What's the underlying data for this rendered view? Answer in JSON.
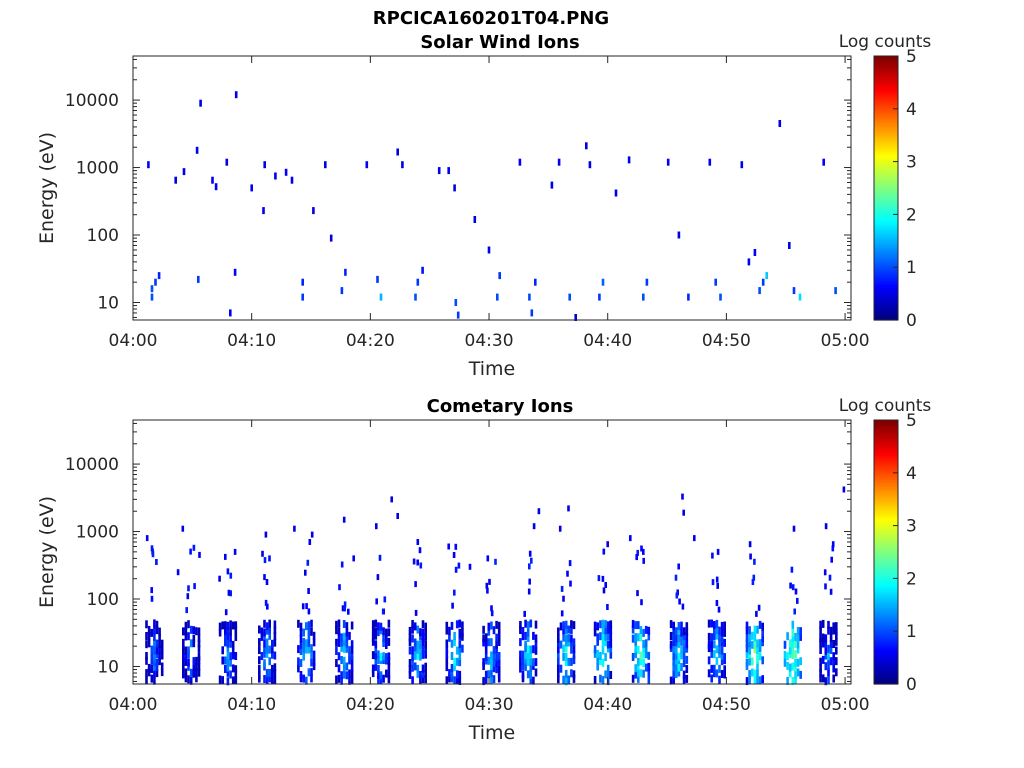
{
  "figure": {
    "title": "RPCICA160201T04.PNG"
  },
  "chart_data": [
    {
      "type": "heatmap",
      "title": "Solar Wind Ions",
      "xlabel": "Time",
      "ylabel": "Energy (eV)",
      "x_ticks": [
        "04:00",
        "04:10",
        "04:20",
        "04:30",
        "04:40",
        "04:50",
        "05:00"
      ],
      "x_range_minutes": [
        0,
        60.5
      ],
      "y_ticks": [
        "10",
        "100",
        "1000",
        "10000"
      ],
      "y_tick_values": [
        10,
        100,
        1000,
        10000
      ],
      "y_scale": "log",
      "y_range": [
        5.5,
        45000
      ],
      "colorbar": {
        "label": "Log counts",
        "ticks": [
          "0",
          "1",
          "2",
          "3",
          "4",
          "5"
        ],
        "range": [
          0,
          5
        ],
        "colormap": "jet"
      },
      "cells": [
        [
          1.6,
          12,
          1.0
        ],
        [
          1.6,
          16,
          1.0
        ],
        [
          1.9,
          20,
          0.9
        ],
        [
          2.2,
          25,
          0.8
        ],
        [
          1.3,
          1100,
          0.6
        ],
        [
          3.6,
          650,
          0.5
        ],
        [
          4.3,
          870,
          0.5
        ],
        [
          5.5,
          22,
          0.9
        ],
        [
          5.4,
          1800.0,
          0.6
        ],
        [
          5.7,
          9000,
          0.5
        ],
        [
          6.7,
          650,
          0.6
        ],
        [
          7.0,
          520,
          0.6
        ],
        [
          7.9,
          1200.0,
          0.5
        ],
        [
          8.2,
          7,
          0.6
        ],
        [
          8.6,
          28,
          0.6
        ],
        [
          8.7,
          12000,
          0.5
        ],
        [
          10.0,
          500,
          0.6
        ],
        [
          11.0,
          230,
          0.5
        ],
        [
          11.1,
          1100.0,
          0.5
        ],
        [
          12.0,
          750,
          0.5
        ],
        [
          12.9,
          850,
          0.6
        ],
        [
          13.4,
          650,
          0.5
        ],
        [
          14.3,
          12,
          0.9
        ],
        [
          14.3,
          20,
          0.8
        ],
        [
          15.2,
          230,
          0.5
        ],
        [
          16.2,
          1100.0,
          0.5
        ],
        [
          16.7,
          90,
          0.5
        ],
        [
          17.6,
          15,
          0.9
        ],
        [
          17.9,
          28,
          0.8
        ],
        [
          19.7,
          1100.0,
          0.6
        ],
        [
          20.6,
          22,
          0.9
        ],
        [
          20.9,
          12,
          1.5
        ],
        [
          22.3,
          1700.0,
          0.5
        ],
        [
          22.7,
          1100.0,
          0.5
        ],
        [
          23.8,
          12,
          1.0
        ],
        [
          24.0,
          20,
          0.9
        ],
        [
          24.4,
          30,
          0.7
        ],
        [
          25.8,
          900,
          0.6
        ],
        [
          26.6,
          900,
          0.6
        ],
        [
          27.1,
          500,
          0.5
        ],
        [
          27.2,
          10,
          1.0
        ],
        [
          27.4,
          6.5,
          0.9
        ],
        [
          28.8,
          170,
          0.5
        ],
        [
          30.0,
          60,
          0.5
        ],
        [
          30.7,
          12,
          1.0
        ],
        [
          30.9,
          25,
          0.9
        ],
        [
          32.6,
          1200.0,
          0.6
        ],
        [
          33.4,
          12,
          1.0
        ],
        [
          33.6,
          7,
          0.9
        ],
        [
          33.9,
          20,
          0.8
        ],
        [
          35.3,
          550,
          0.5
        ],
        [
          35.9,
          1200.0,
          0.6
        ],
        [
          36.8,
          12,
          1.0
        ],
        [
          37.3,
          6,
          0.5
        ],
        [
          38.2,
          2100.0,
          0.5
        ],
        [
          38.5,
          1100.0,
          0.5
        ],
        [
          39.3,
          12,
          0.9
        ],
        [
          39.6,
          20,
          1.1
        ],
        [
          40.7,
          420,
          0.5
        ],
        [
          41.8,
          1300.0,
          0.6
        ],
        [
          43.0,
          12,
          1.0
        ],
        [
          43.3,
          20,
          0.9
        ],
        [
          45.1,
          1200.0,
          0.6
        ],
        [
          46.0,
          100,
          0.5
        ],
        [
          46.8,
          12,
          0.8
        ],
        [
          48.6,
          1200.0,
          0.6
        ],
        [
          49.1,
          20,
          0.9
        ],
        [
          49.5,
          12,
          1.0
        ],
        [
          51.3,
          1100.0,
          0.5
        ],
        [
          51.9,
          40,
          0.6
        ],
        [
          52.4,
          55,
          0.6
        ],
        [
          52.8,
          15,
          1.0
        ],
        [
          53.1,
          20,
          0.9
        ],
        [
          53.4,
          25,
          1.6
        ],
        [
          54.5,
          4500,
          0.5
        ],
        [
          55.3,
          70,
          0.6
        ],
        [
          55.7,
          15,
          0.9
        ],
        [
          56.2,
          12,
          1.7
        ],
        [
          58.2,
          1200.0,
          0.6
        ],
        [
          59.2,
          15,
          1.0
        ]
      ]
    },
    {
      "type": "heatmap",
      "title": "Cometary Ions",
      "xlabel": "Time",
      "ylabel": "Energy (eV)",
      "x_ticks": [
        "04:00",
        "04:10",
        "04:20",
        "04:30",
        "04:40",
        "04:50",
        "05:00"
      ],
      "x_range_minutes": [
        0,
        60.5
      ],
      "y_ticks": [
        "10",
        "100",
        "1000",
        "10000"
      ],
      "y_tick_values": [
        10,
        100,
        1000,
        10000
      ],
      "y_scale": "log",
      "y_range": [
        5.5,
        45000
      ],
      "colorbar": {
        "label": "Log counts",
        "ticks": [
          "0",
          "1",
          "2",
          "3",
          "4",
          "5"
        ],
        "range": [
          0,
          5
        ],
        "colormap": "jet"
      },
      "bursts_minutes": [
        1.8,
        4.9,
        8.0,
        11.3,
        14.6,
        17.8,
        20.9,
        24.0,
        27.1,
        30.2,
        33.3,
        36.5,
        39.6,
        42.8,
        46.0,
        49.2,
        52.4,
        55.6,
        58.6
      ],
      "burst_peak_log_counts": [
        1.5,
        1.6,
        1.7,
        1.9,
        2.1,
        2.0,
        1.9,
        2.0,
        2.1,
        2.0,
        2.1,
        2.2,
        2.4,
        2.6,
        2.2,
        2.1,
        2.7,
        2.8,
        1.6
      ],
      "scattered_cells": [
        [
          1.2,
          800,
          0.6
        ],
        [
          3.8,
          250,
          0.6
        ],
        [
          4.2,
          1100.0,
          0.5
        ],
        [
          5.6,
          450,
          0.6
        ],
        [
          7.3,
          200,
          0.5
        ],
        [
          8.6,
          500,
          0.6
        ],
        [
          11.2,
          900,
          0.5
        ],
        [
          11.5,
          400,
          0.7
        ],
        [
          13.6,
          1100.0,
          0.5
        ],
        [
          14.9,
          700,
          0.6
        ],
        [
          15.1,
          900,
          0.5
        ],
        [
          17.8,
          1500.0,
          0.5
        ],
        [
          18.6,
          400,
          0.6
        ],
        [
          20.5,
          1200.0,
          0.5
        ],
        [
          21.8,
          3000,
          0.5
        ],
        [
          22.3,
          1700.0,
          0.5
        ],
        [
          24.0,
          700,
          0.6
        ],
        [
          26.6,
          600,
          0.6
        ],
        [
          28.4,
          300,
          0.6
        ],
        [
          29.9,
          400,
          0.6
        ],
        [
          33.8,
          1200.0,
          0.5
        ],
        [
          34.2,
          2000,
          0.5
        ],
        [
          36.7,
          2200.0,
          0.5
        ],
        [
          36.0,
          1100.0,
          0.5
        ],
        [
          40.0,
          650,
          0.5
        ],
        [
          41.9,
          800,
          0.6
        ],
        [
          43.0,
          500,
          0.6
        ],
        [
          46.3,
          3300,
          0.5
        ],
        [
          46.4,
          1900.0,
          0.5
        ],
        [
          47.3,
          800,
          0.5
        ],
        [
          49.3,
          500,
          0.6
        ],
        [
          52.0,
          650,
          0.5
        ],
        [
          55.7,
          1100.0,
          0.5
        ],
        [
          58.4,
          1200.0,
          0.5
        ],
        [
          59.0,
          650,
          0.6
        ],
        [
          59.9,
          4200,
          0.5
        ]
      ]
    }
  ]
}
